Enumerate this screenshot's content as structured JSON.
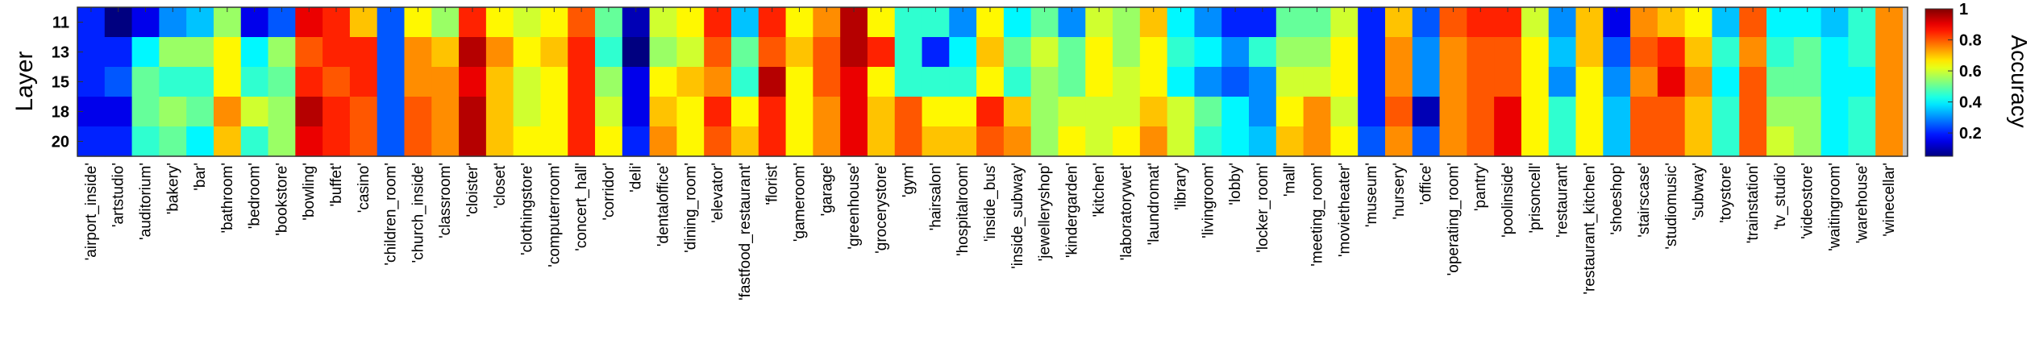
{
  "chart_data": {
    "type": "heatmap",
    "title": "",
    "xlabel": "",
    "ylabel": "Layer",
    "colorbar_label": "Accuracy",
    "colorbar_ticks": [
      "0.2",
      "0.4",
      "0.6",
      "0.8",
      "1"
    ],
    "colorbar_tick_values": [
      0.2,
      0.4,
      0.6,
      0.8,
      1.0
    ],
    "value_range": [
      0.05,
      1.0
    ],
    "colormap": "jet",
    "y_ticks": [
      "11",
      "13",
      "15",
      "18",
      "20"
    ],
    "categories": [
      "'airport_inside'",
      "'artstudio'",
      "'auditorium'",
      "'bakery'",
      "'bar'",
      "'bathroom'",
      "'bedroom'",
      "'bookstore'",
      "'bowling'",
      "'buffet'",
      "'casino'",
      "'children_room'",
      "'church_inside'",
      "'classroom'",
      "'cloister'",
      "'closet'",
      "'clothingstore'",
      "'computerroom'",
      "'concert_hall'",
      "'corridor'",
      "'deli'",
      "'dentaloffice'",
      "'dining_room'",
      "'elevator'",
      "'fastfood_restaurant'",
      "'florist'",
      "'gameroom'",
      "'garage'",
      "'greenhouse'",
      "'grocerystore'",
      "'gym'",
      "'hairsalon'",
      "'hospitalroom'",
      "'inside_bus'",
      "'inside_subway'",
      "'jewelleryshop'",
      "'kindergarden'",
      "'kitchen'",
      "'laboratorywet'",
      "'laundromat'",
      "'library'",
      "'livingroom'",
      "'lobby'",
      "'locker_room'",
      "'mall'",
      "'meeting_room'",
      "'movietheater'",
      "'museum'",
      "'nursery'",
      "'office'",
      "'operating_room'",
      "'pantry'",
      "'poolinside'",
      "'prisoncell'",
      "'restaurant'",
      "'restaurant_kitchen'",
      "'shoeshop'",
      "'stairscase'",
      "'studiomusic'",
      "'subway'",
      "'toystore'",
      "'trainstation'",
      "'tv_studio'",
      "'videostore'",
      "'waitingroom'",
      "'warehouse'",
      "'winecellar'"
    ],
    "rows": [
      {
        "layer": "11",
        "values": [
          0.2,
          0.05,
          0.15,
          0.3,
          0.35,
          0.55,
          0.15,
          0.25,
          0.9,
          0.85,
          0.7,
          0.25,
          0.65,
          0.55,
          0.85,
          0.65,
          0.6,
          0.65,
          0.8,
          0.5,
          0.1,
          0.6,
          0.65,
          0.85,
          0.35,
          0.85,
          0.65,
          0.75,
          0.95,
          0.65,
          0.45,
          0.45,
          0.3,
          0.65,
          0.4,
          0.5,
          0.3,
          0.6,
          0.55,
          0.7,
          0.4,
          0.3,
          0.2,
          0.2,
          0.5,
          0.5,
          0.6,
          0.2,
          0.7,
          0.25,
          0.8,
          0.85,
          0.85,
          0.6,
          0.3,
          0.7,
          0.15,
          0.75,
          0.7,
          0.65,
          0.35,
          0.8,
          0.4,
          0.4,
          0.35,
          0.45,
          0.75
        ]
      },
      {
        "layer": "13",
        "values": [
          0.2,
          0.2,
          0.4,
          0.55,
          0.55,
          0.65,
          0.4,
          0.55,
          0.8,
          0.85,
          0.85,
          0.25,
          0.75,
          0.7,
          0.95,
          0.75,
          0.65,
          0.7,
          0.85,
          0.45,
          0.05,
          0.55,
          0.6,
          0.8,
          0.5,
          0.8,
          0.7,
          0.8,
          0.95,
          0.85,
          0.45,
          0.2,
          0.4,
          0.7,
          0.5,
          0.6,
          0.5,
          0.65,
          0.55,
          0.65,
          0.45,
          0.4,
          0.3,
          0.45,
          0.55,
          0.55,
          0.65,
          0.2,
          0.75,
          0.3,
          0.75,
          0.8,
          0.8,
          0.65,
          0.35,
          0.7,
          0.25,
          0.8,
          0.85,
          0.7,
          0.45,
          0.75,
          0.45,
          0.5,
          0.4,
          0.45,
          0.75
        ]
      },
      {
        "layer": "15",
        "values": [
          0.2,
          0.25,
          0.5,
          0.45,
          0.45,
          0.65,
          0.45,
          0.5,
          0.85,
          0.8,
          0.85,
          0.25,
          0.75,
          0.75,
          0.9,
          0.7,
          0.6,
          0.65,
          0.85,
          0.55,
          0.15,
          0.65,
          0.7,
          0.75,
          0.45,
          0.95,
          0.65,
          0.8,
          0.9,
          0.65,
          0.45,
          0.45,
          0.45,
          0.65,
          0.45,
          0.55,
          0.5,
          0.65,
          0.6,
          0.65,
          0.4,
          0.3,
          0.25,
          0.3,
          0.6,
          0.6,
          0.65,
          0.2,
          0.75,
          0.3,
          0.75,
          0.8,
          0.8,
          0.65,
          0.3,
          0.65,
          0.3,
          0.75,
          0.9,
          0.75,
          0.4,
          0.8,
          0.5,
          0.5,
          0.4,
          0.4,
          0.75
        ]
      },
      {
        "layer": "18",
        "values": [
          0.15,
          0.15,
          0.5,
          0.55,
          0.5,
          0.75,
          0.6,
          0.55,
          0.95,
          0.85,
          0.8,
          0.25,
          0.8,
          0.75,
          0.95,
          0.7,
          0.6,
          0.65,
          0.85,
          0.6,
          0.15,
          0.7,
          0.65,
          0.85,
          0.65,
          0.85,
          0.65,
          0.75,
          0.9,
          0.7,
          0.8,
          0.65,
          0.65,
          0.85,
          0.7,
          0.55,
          0.6,
          0.6,
          0.6,
          0.7,
          0.6,
          0.5,
          0.4,
          0.3,
          0.65,
          0.75,
          0.6,
          0.2,
          0.8,
          0.1,
          0.75,
          0.8,
          0.9,
          0.65,
          0.45,
          0.65,
          0.35,
          0.8,
          0.8,
          0.7,
          0.45,
          0.8,
          0.55,
          0.55,
          0.4,
          0.45,
          0.75
        ]
      },
      {
        "layer": "20",
        "values": [
          0.2,
          0.2,
          0.45,
          0.5,
          0.4,
          0.7,
          0.45,
          0.55,
          0.9,
          0.85,
          0.8,
          0.25,
          0.8,
          0.75,
          0.95,
          0.7,
          0.65,
          0.65,
          0.85,
          0.65,
          0.2,
          0.75,
          0.65,
          0.8,
          0.7,
          0.85,
          0.65,
          0.75,
          0.9,
          0.7,
          0.8,
          0.7,
          0.7,
          0.8,
          0.75,
          0.55,
          0.65,
          0.6,
          0.65,
          0.75,
          0.6,
          0.45,
          0.4,
          0.35,
          0.7,
          0.75,
          0.65,
          0.25,
          0.75,
          0.25,
          0.75,
          0.8,
          0.9,
          0.65,
          0.45,
          0.65,
          0.35,
          0.8,
          0.8,
          0.7,
          0.45,
          0.8,
          0.6,
          0.55,
          0.4,
          0.45,
          0.75
        ]
      }
    ]
  }
}
